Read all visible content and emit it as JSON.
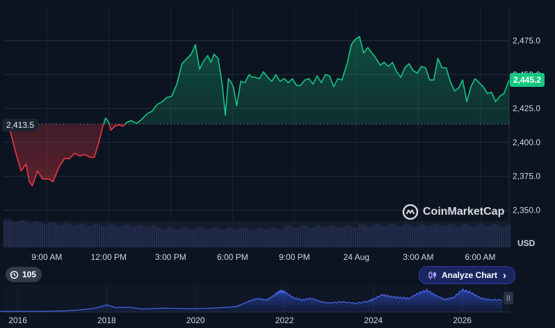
{
  "chart_data": {
    "type": "area",
    "title": "",
    "ylabel": "",
    "currency": "USD",
    "y_ticks": [
      "2,350.0",
      "2,375.0",
      "2,400.0",
      "2,425.0",
      "2,450.0",
      "2,475.0"
    ],
    "ylim": [
      2340,
      2490
    ],
    "x_tick_labels": [
      "9:00 AM",
      "12:00 PM",
      "3:00 PM",
      "6:00 PM",
      "9:00 PM",
      "24 Aug",
      "3:00 AM",
      "6:00 AM"
    ],
    "x_ticks_hours": [
      9,
      12,
      15,
      18,
      21,
      24,
      27,
      30
    ],
    "xlim_hours": [
      6.9,
      31.4
    ],
    "base_value": 2413.5,
    "base_label": "2,413.5",
    "last_value": 2445.2,
    "last_label": "2,445.2",
    "up_color": "#16c784",
    "down_color": "#ea3943",
    "grid": true,
    "series": [
      {
        "x": [
          6.9,
          7.2,
          7.5,
          7.75,
          8.0,
          8.15,
          8.3,
          8.55,
          8.8,
          9.1,
          9.3,
          9.6,
          9.85,
          10.1,
          10.35,
          10.6,
          10.85,
          11.1,
          11.3,
          11.5,
          11.7,
          11.85,
          12.0,
          12.1,
          12.3,
          12.5,
          12.7,
          12.9,
          13.1,
          13.35,
          13.6,
          13.85,
          14.1,
          14.35,
          14.6,
          14.8,
          15.05,
          15.3,
          15.55,
          15.8,
          16.0,
          16.2,
          16.4,
          16.6,
          16.8,
          16.95,
          17.1,
          17.3,
          17.5,
          17.65,
          17.8,
          17.95,
          18.05,
          18.2,
          18.4,
          18.6,
          18.8,
          18.95,
          19.1,
          19.3,
          19.5,
          19.7,
          19.9,
          20.1,
          20.3,
          20.5,
          20.7,
          20.9,
          21.1,
          21.3,
          21.5,
          21.7,
          21.9,
          22.1,
          22.3,
          22.5,
          22.7,
          22.9,
          23.1,
          23.3,
          23.55,
          23.75,
          23.95,
          24.15,
          24.35,
          24.55,
          24.75,
          24.95,
          25.15,
          25.35,
          25.55,
          25.75,
          25.95,
          26.15,
          26.35,
          26.55,
          26.75,
          26.95,
          27.15,
          27.35,
          27.55,
          27.75,
          27.95,
          28.15,
          28.35,
          28.55,
          28.75,
          28.95,
          29.15,
          29.35,
          29.55,
          29.75,
          29.95,
          30.15,
          30.35,
          30.55,
          30.75,
          30.95,
          31.15,
          31.4
        ],
        "values": [
          2412,
          2410,
          2392,
          2379,
          2384,
          2371,
          2368,
          2379,
          2373,
          2373,
          2371,
          2382,
          2388,
          2388,
          2392,
          2390,
          2391,
          2389,
          2389,
          2399,
          2411,
          2418,
          2415,
          2409,
          2412,
          2413,
          2412,
          2415,
          2416,
          2414,
          2417,
          2421,
          2423,
          2428,
          2430,
          2433,
          2434,
          2443,
          2458,
          2462,
          2465,
          2472,
          2454,
          2460,
          2464,
          2459,
          2465,
          2462,
          2443,
          2420,
          2447,
          2444,
          2440,
          2427,
          2445,
          2444,
          2450,
          2448,
          2448,
          2447,
          2452,
          2448,
          2445,
          2450,
          2445,
          2447,
          2444,
          2447,
          2442,
          2442,
          2446,
          2447,
          2443,
          2449,
          2444,
          2450,
          2449,
          2441,
          2447,
          2446,
          2458,
          2472,
          2476,
          2478,
          2466,
          2470,
          2466,
          2462,
          2457,
          2459,
          2456,
          2459,
          2452,
          2448,
          2455,
          2458,
          2453,
          2451,
          2456,
          2455,
          2446,
          2446,
          2462,
          2455,
          2455,
          2445,
          2438,
          2440,
          2446,
          2430,
          2441,
          2447,
          2444,
          2441,
          2436,
          2437,
          2430,
          2434,
          2436,
          2446
        ]
      }
    ],
    "overview": {
      "x_tick_labels": [
        "2016",
        "2018",
        "2020",
        "2022",
        "2024",
        "2026"
      ],
      "x_ticks_year": [
        2016,
        2018,
        2020,
        2022,
        2024,
        2026
      ],
      "xlim_year": [
        2015.6,
        2027.1
      ],
      "years": [
        2015.6,
        2016.0,
        2016.5,
        2017.0,
        2017.3,
        2017.6,
        2017.8,
        2018.0,
        2018.2,
        2018.5,
        2018.8,
        2019.0,
        2019.3,
        2019.6,
        2019.9,
        2020.0,
        2020.3,
        2020.6,
        2020.9,
        2021.0,
        2021.2,
        2021.4,
        2021.6,
        2021.8,
        2021.9,
        2022.0,
        2022.2,
        2022.4,
        2022.6,
        2022.8,
        2023.0,
        2023.3,
        2023.6,
        2023.9,
        2024.0,
        2024.2,
        2024.4,
        2024.6,
        2024.8,
        2025.0,
        2025.2,
        2025.4,
        2025.6,
        2025.8,
        2026.0,
        2026.2,
        2026.4,
        2026.6,
        2026.9
      ],
      "values": [
        0.4,
        0.4,
        0.5,
        0.7,
        1.2,
        2.0,
        3.0,
        4.8,
        3.0,
        3.2,
        2.0,
        2.2,
        2.6,
        2.4,
        2.2,
        2.3,
        2.5,
        3.0,
        3.6,
        4.6,
        7.2,
        9.0,
        8.0,
        11.8,
        14.0,
        13.5,
        9.6,
        8.0,
        9.2,
        7.0,
        6.0,
        6.8,
        5.8,
        7.2,
        8.6,
        11.6,
        10.2,
        9.6,
        9.0,
        12.4,
        14.6,
        11.0,
        8.4,
        9.6,
        14.8,
        13.0,
        9.4,
        8.2,
        8.0
      ]
    }
  },
  "ui": {
    "watermark_text": "CoinMarketCap",
    "usd_label": "USD",
    "range_badge": "105",
    "analyze_label": "Analyze Chart",
    "analyze_arrow": "›",
    "icons": {
      "history": "history-clock-icon",
      "analyze": "candlestick-icon",
      "logo": "coinmarketcap-logo-icon"
    }
  }
}
